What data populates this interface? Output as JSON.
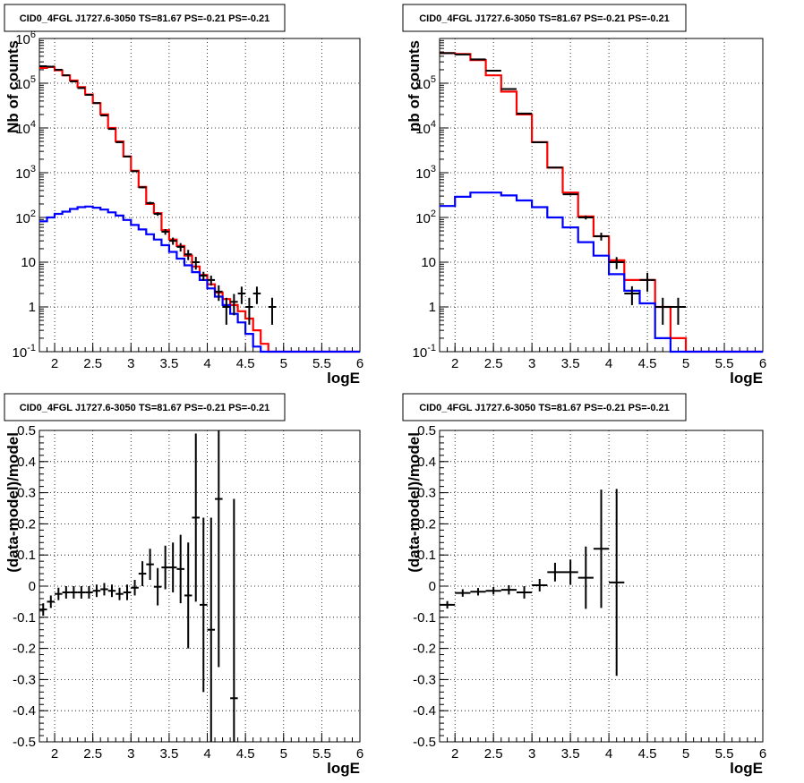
{
  "chart_data": [
    {
      "type": "line",
      "title": "CID0_4FGL J1727.6-3050 TS=81.67 PS=-0.21 PS=-0.21",
      "xlabel": "logE",
      "ylabel": "Nb of counts",
      "xlim": [
        1.8,
        6.0
      ],
      "ylim": [
        0.1,
        1000000
      ],
      "yscale": "log",
      "grid": true,
      "x_ticks": [
        "2",
        "2.5",
        "3",
        "3.5",
        "4",
        "4.5",
        "5",
        "5.5",
        "6"
      ],
      "y_ticks": [
        "10^-1",
        "1",
        "10",
        "10^2",
        "10^3",
        "10^4",
        "10^5",
        "10^6"
      ],
      "bin_edges": [
        1.8,
        1.9,
        2.0,
        2.1,
        2.2,
        2.3,
        2.4,
        2.5,
        2.6,
        2.7,
        2.8,
        2.9,
        3.0,
        3.1,
        3.2,
        3.3,
        3.4,
        3.5,
        3.6,
        3.7,
        3.8,
        3.9,
        4.0,
        4.1,
        4.2,
        4.3,
        4.4,
        4.5,
        4.6,
        4.7,
        4.8,
        4.9,
        5.0,
        5.1,
        5.2,
        5.3,
        5.4,
        5.5,
        5.6,
        5.7,
        5.8,
        5.9,
        6.0
      ],
      "series": [
        {
          "name": "",
          "kind": "data",
          "color": "#000000",
          "points": [
            [
              1.85,
              240000,
              0
            ],
            [
              1.95,
              235000,
              0
            ],
            [
              2.05,
              200000,
              0
            ],
            [
              2.15,
              150000,
              0
            ],
            [
              2.25,
              110000,
              0
            ],
            [
              2.35,
              78000,
              0
            ],
            [
              2.45,
              55000,
              0
            ],
            [
              2.55,
              36000,
              0
            ],
            [
              2.65,
              19000,
              0
            ],
            [
              2.75,
              9500,
              0
            ],
            [
              2.85,
              4800,
              0
            ],
            [
              2.95,
              2300,
              0
            ],
            [
              3.05,
              1080,
              0
            ],
            [
              3.15,
              470,
              0
            ],
            [
              3.25,
              210,
              0
            ],
            [
              3.35,
              120,
              0
            ],
            [
              3.45,
              48,
              0
            ],
            [
              3.55,
              30,
              0
            ],
            [
              3.65,
              22,
              0
            ],
            [
              3.75,
              15,
              0
            ],
            [
              3.85,
              10,
              0
            ],
            [
              3.95,
              5,
              0.22
            ],
            [
              4.05,
              4,
              0.25
            ],
            [
              4.15,
              2.2,
              0.38
            ],
            [
              4.25,
              1,
              0.6
            ],
            [
              4.35,
              1.3,
              0.5
            ],
            [
              4.45,
              2,
              0.42
            ],
            [
              4.55,
              1,
              0.6
            ],
            [
              4.65,
              2,
              0.42
            ],
            [
              4.85,
              1,
              0.6
            ]
          ]
        },
        {
          "name": "",
          "kind": "model",
          "color": "#ff0000",
          "values": [
            220000,
            230000,
            195000,
            150000,
            115000,
            82000,
            56000,
            36000,
            20000,
            10000,
            5000,
            2300,
            1100,
            480,
            200,
            125,
            52,
            32,
            23,
            14,
            8,
            5.2,
            3.2,
            2.1,
            1.5,
            1.1,
            0.8,
            0.55,
            0.3,
            0.15,
            0.1,
            0.1,
            0.1,
            0.1,
            0.1,
            0.1,
            0.1,
            0.1,
            0.1,
            0.1,
            0.1,
            0.1
          ]
        },
        {
          "name": "",
          "kind": "model",
          "color": "#0000ff",
          "values": [
            82,
            100,
            120,
            135,
            155,
            170,
            175,
            165,
            150,
            130,
            110,
            88,
            68,
            54,
            42,
            32,
            24,
            17,
            12,
            8.5,
            6,
            4,
            2.6,
            1.7,
            1.1,
            0.7,
            0.45,
            0.25,
            0.13,
            0.1,
            0.1,
            0.1,
            0.1,
            0.1,
            0.1,
            0.1,
            0.1,
            0.1,
            0.1,
            0.1,
            0.1,
            0.1
          ]
        }
      ]
    },
    {
      "type": "line",
      "title": "CID0_4FGL J1727.6-3050 TS=81.67 PS=-0.21 PS=-0.21",
      "xlabel": "logE",
      "ylabel": "nb of counts",
      "xlim": [
        1.8,
        6.0
      ],
      "ylim": [
        0.1,
        1000000
      ],
      "yscale": "log",
      "grid": true,
      "x_ticks": [
        "2",
        "2.5",
        "3",
        "3.5",
        "4",
        "4.5",
        "5",
        "5.5",
        "6"
      ],
      "y_ticks": [
        "10^-1",
        "1",
        "10",
        "10^2",
        "10^3",
        "10^4",
        "10^5"
      ],
      "bin_edges": [
        1.8,
        2.0,
        2.2,
        2.4,
        2.6,
        2.8,
        3.0,
        3.2,
        3.4,
        3.6,
        3.8,
        4.0,
        4.2,
        4.4,
        4.6,
        4.8,
        5.0,
        5.2,
        5.4,
        5.6,
        5.8,
        6.0
      ],
      "series": [
        {
          "name": "",
          "kind": "data",
          "color": "#000000",
          "points": [
            [
              1.9,
              470000,
              0
            ],
            [
              2.1,
              440000,
              0
            ],
            [
              2.3,
              340000,
              0
            ],
            [
              2.5,
              190000,
              0
            ],
            [
              2.7,
              74000,
              0
            ],
            [
              2.9,
              21000,
              0
            ],
            [
              3.1,
              4800,
              0
            ],
            [
              3.3,
              1300,
              0
            ],
            [
              3.5,
              330,
              0
            ],
            [
              3.7,
              100,
              0
            ],
            [
              3.9,
              38,
              0.2
            ],
            [
              4.1,
              10,
              0.3
            ],
            [
              4.3,
              2,
              0.45
            ],
            [
              4.5,
              4,
              0.45
            ],
            [
              4.7,
              1,
              0.6
            ],
            [
              4.9,
              1,
              0.6
            ]
          ]
        },
        {
          "name": "",
          "kind": "model",
          "color": "#ff0000",
          "values": [
            470000,
            450000,
            330000,
            150000,
            65000,
            20000,
            4800,
            1300,
            360,
            105,
            38,
            11,
            4,
            4,
            1,
            0.2,
            0.1,
            0.1,
            0.1,
            0.1,
            0.1
          ]
        },
        {
          "name": "",
          "kind": "model",
          "color": "#0000ff",
          "values": [
            180,
            290,
            360,
            360,
            310,
            240,
            170,
            100,
            60,
            28,
            14,
            5.4,
            2.3,
            1.2,
            0.2,
            0.1,
            0.1,
            0.1,
            0.1,
            0.1,
            0.1
          ]
        }
      ]
    },
    {
      "type": "scatter",
      "title": "CID0_4FGL J1727.6-3050 TS=81.67 PS=-0.21 PS=-0.21",
      "xlabel": "logE",
      "ylabel": "(data-model)/model",
      "xlim": [
        1.8,
        6.0
      ],
      "ylim": [
        -0.5,
        0.5
      ],
      "grid": true,
      "x_ticks": [
        "2",
        "2.5",
        "3",
        "3.5",
        "4",
        "4.5",
        "5",
        "5.5",
        "6"
      ],
      "y_ticks": [
        "-0.5",
        "-0.4",
        "-0.3",
        "-0.2",
        "-0.1",
        "0",
        "0.1",
        "0.2",
        "0.3",
        "0.4",
        "0.5"
      ],
      "series": [
        {
          "name": "",
          "color": "#000000",
          "xerr": 0.05,
          "points": [
            [
              1.85,
              -0.075,
              0.02
            ],
            [
              1.95,
              -0.05,
              0.02
            ],
            [
              2.05,
              -0.025,
              0.02
            ],
            [
              2.15,
              -0.02,
              0.02
            ],
            [
              2.25,
              -0.02,
              0.02
            ],
            [
              2.35,
              -0.02,
              0.02
            ],
            [
              2.45,
              -0.02,
              0.02
            ],
            [
              2.55,
              -0.015,
              0.02
            ],
            [
              2.65,
              -0.01,
              0.02
            ],
            [
              2.75,
              -0.015,
              0.02
            ],
            [
              2.85,
              -0.025,
              0.02
            ],
            [
              2.95,
              -0.02,
              0.025
            ],
            [
              3.05,
              -0.005,
              0.025
            ],
            [
              3.15,
              0.04,
              0.04
            ],
            [
              3.25,
              0.07,
              0.05
            ],
            [
              3.35,
              -0.002,
              0.06
            ],
            [
              3.45,
              0.06,
              0.07
            ],
            [
              3.55,
              0.06,
              0.08
            ],
            [
              3.65,
              0.055,
              0.11
            ],
            [
              3.75,
              -0.03,
              0.17
            ],
            [
              3.85,
              0.22,
              0.27
            ],
            [
              3.95,
              -0.06,
              0.28
            ],
            [
              4.05,
              -0.14,
              0.36
            ],
            [
              4.15,
              0.28,
              0.54
            ],
            [
              4.35,
              -0.36,
              0.64
            ]
          ]
        }
      ]
    },
    {
      "type": "scatter",
      "title": "CID0_4FGL J1727.6-3050 TS=81.67 PS=-0.21 PS=-0.21",
      "xlabel": "logE",
      "ylabel": "(data-model)/model",
      "xlim": [
        1.8,
        6.0
      ],
      "ylim": [
        -0.5,
        0.5
      ],
      "grid": true,
      "x_ticks": [
        "2",
        "2.5",
        "3",
        "3.5",
        "4",
        "4.5",
        "5",
        "5.5",
        "6"
      ],
      "y_ticks": [
        "-0.5",
        "-0.4",
        "-0.3",
        "-0.2",
        "-0.1",
        "0",
        "0.1",
        "0.2",
        "0.3",
        "0.4",
        "0.5"
      ],
      "series": [
        {
          "name": "",
          "color": "#000000",
          "xerr": 0.1,
          "points": [
            [
              1.9,
              -0.06,
              0.012
            ],
            [
              2.1,
              -0.022,
              0.012
            ],
            [
              2.3,
              -0.018,
              0.012
            ],
            [
              2.5,
              -0.015,
              0.012
            ],
            [
              2.7,
              -0.012,
              0.015
            ],
            [
              2.9,
              -0.02,
              0.02
            ],
            [
              3.1,
              0.003,
              0.02
            ],
            [
              3.3,
              0.045,
              0.03
            ],
            [
              3.5,
              0.045,
              0.04
            ],
            [
              3.7,
              0.027,
              0.1
            ],
            [
              3.9,
              0.12,
              0.19
            ],
            [
              4.1,
              0.012,
              0.3
            ]
          ]
        }
      ]
    }
  ]
}
